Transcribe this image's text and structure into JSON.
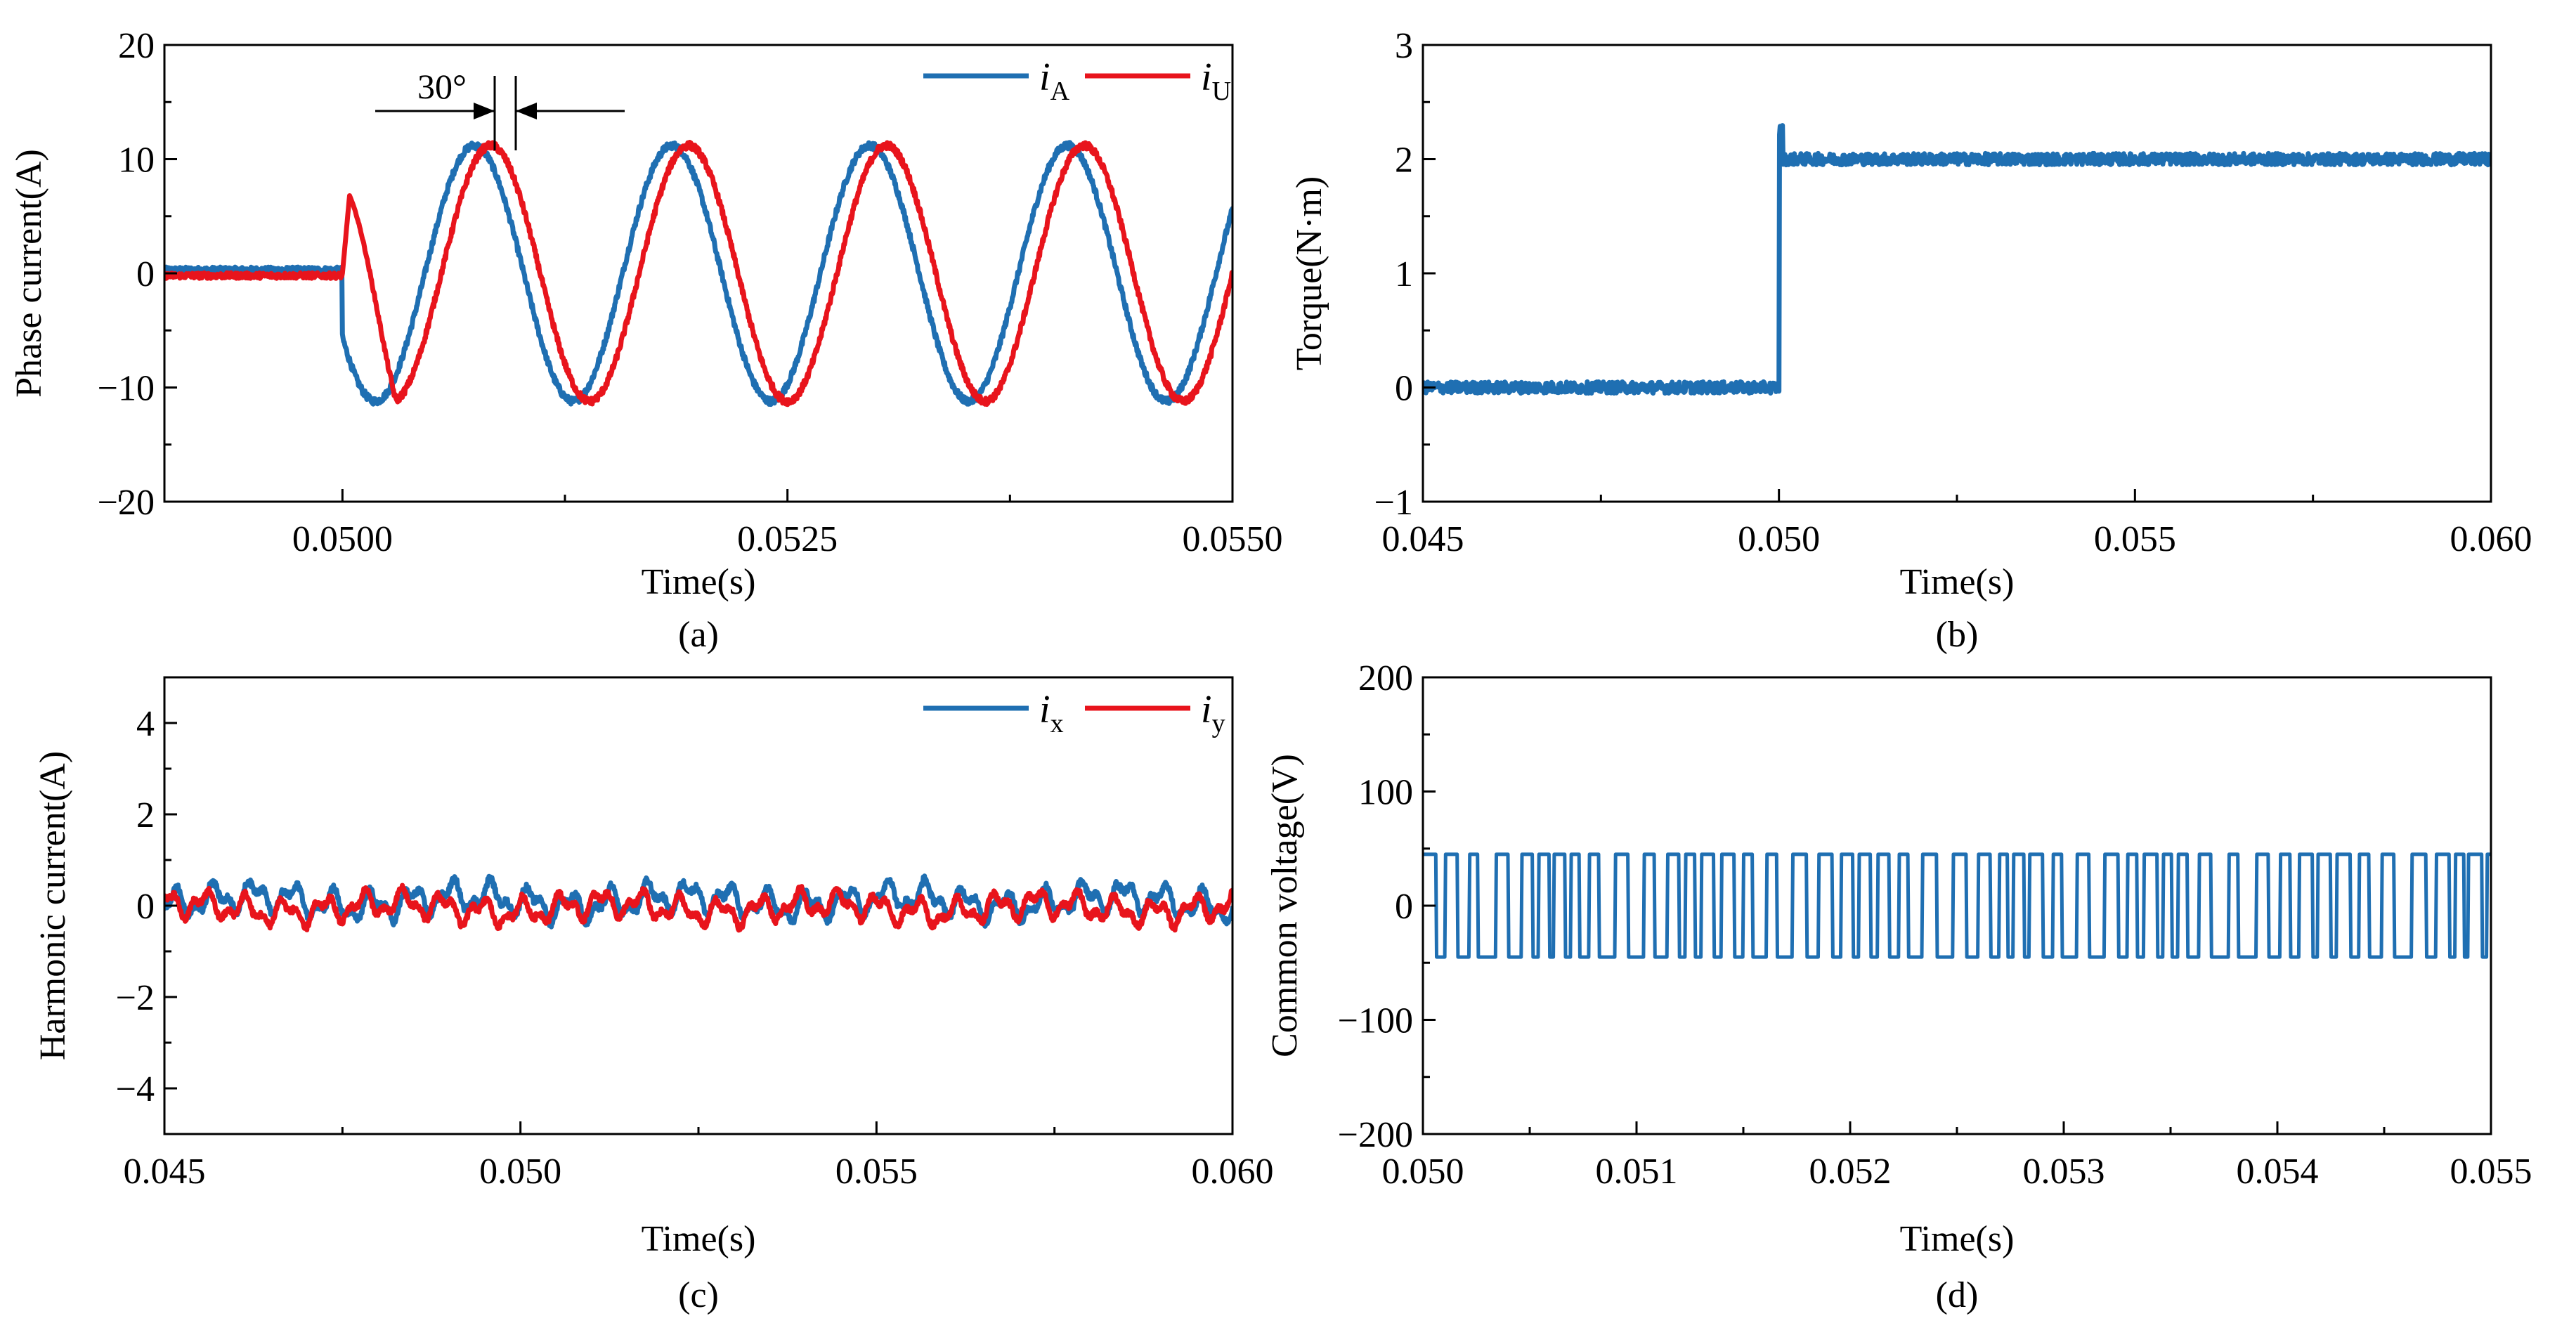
{
  "chart_data": [
    {
      "id": "a",
      "type": "line",
      "caption": "(a)",
      "xlabel": "Time(s)",
      "ylabel": "Phase current(A)",
      "xlim": [
        0.049,
        0.055
      ],
      "ylim": [
        -20,
        20
      ],
      "xticks": [
        0.05,
        0.0525,
        0.055
      ],
      "xtick_labels": [
        "0.0500",
        "0.0525",
        "0.0550"
      ],
      "xminor": [
        0.04875,
        0.05125,
        0.05375
      ],
      "yticks": [
        -20,
        -10,
        0,
        10,
        20
      ],
      "ytick_labels": [
        "−20",
        "−10",
        "0",
        "10",
        "20"
      ],
      "annotation": "30°",
      "legend": [
        {
          "name": "i",
          "sub": "A",
          "color": "#1f6fb2"
        },
        {
          "name": "i",
          "sub": "U",
          "color": "#e8141c"
        }
      ],
      "series": [
        {
          "name": "iA",
          "color": "#1f6fb2",
          "kind": "sine",
          "start": 0.05,
          "amplitude": 11.2,
          "frequency": 900,
          "phase_deg": 30,
          "pre_value": 0.3
        },
        {
          "name": "iU",
          "color": "#e8141c",
          "kind": "sine",
          "start": 0.05,
          "amplitude": 11.2,
          "frequency": 900,
          "phase_deg": 0,
          "pre_value": -0.2,
          "spike": 6.8
        }
      ]
    },
    {
      "id": "b",
      "type": "line",
      "caption": "(b)",
      "xlabel": "Time(s)",
      "ylabel": "Torque(N·m)",
      "xlim": [
        0.045,
        0.06
      ],
      "ylim": [
        -1,
        3
      ],
      "xticks": [
        0.045,
        0.05,
        0.055,
        0.06
      ],
      "xtick_labels": [
        "0.045",
        "0.050",
        "0.055",
        "0.060"
      ],
      "xminor": [
        0.0475,
        0.0525,
        0.0575
      ],
      "yticks": [
        -1,
        0,
        1,
        2,
        3
      ],
      "ytick_labels": [
        "−1",
        "0",
        "1",
        "2",
        "3"
      ],
      "series": [
        {
          "name": "Torque",
          "color": "#1f6fb2",
          "kind": "step",
          "step_time": 0.05,
          "before": 0.0,
          "after": 2.0,
          "overshoot": 2.25,
          "noise": 0.05
        }
      ]
    },
    {
      "id": "c",
      "type": "line",
      "caption": "(c)",
      "xlabel": "Time(s)",
      "ylabel": "Harmonic current(A)",
      "xlim": [
        0.045,
        0.06
      ],
      "ylim": [
        -5,
        5
      ],
      "xticks": [
        0.045,
        0.05,
        0.055,
        0.06
      ],
      "xtick_labels": [
        "0.045",
        "0.050",
        "0.055",
        "0.060"
      ],
      "xminor": [
        0.0475,
        0.0525,
        0.0575
      ],
      "yticks": [
        -4,
        -2,
        0,
        2,
        4
      ],
      "ytick_labels": [
        "−4",
        "−2",
        "0",
        "2",
        "4"
      ],
      "legend": [
        {
          "name": "i",
          "sub": "x",
          "color": "#1f6fb2"
        },
        {
          "name": "i",
          "sub": "y",
          "color": "#e8141c"
        }
      ],
      "series": [
        {
          "name": "ix",
          "color": "#1f6fb2",
          "kind": "ripple",
          "offset": 0.1,
          "amplitude": 0.25
        },
        {
          "name": "iy",
          "color": "#e8141c",
          "kind": "ripple",
          "offset": -0.05,
          "amplitude": 0.22
        }
      ]
    },
    {
      "id": "d",
      "type": "line",
      "caption": "(d)",
      "xlabel": "Time(s)",
      "ylabel": "Common voltage(V)",
      "xlim": [
        0.05,
        0.055
      ],
      "ylim": [
        -200,
        200
      ],
      "xticks": [
        0.05,
        0.051,
        0.052,
        0.053,
        0.054,
        0.055
      ],
      "xtick_labels": [
        "0.050",
        "0.051",
        "0.052",
        "0.053",
        "0.054",
        "0.055"
      ],
      "xminor": [
        0.0505,
        0.0515,
        0.0525,
        0.0535,
        0.0545
      ],
      "yticks": [
        -200,
        -100,
        0,
        100,
        200
      ],
      "ytick_labels": [
        "−200",
        "−100",
        "0",
        "100",
        "200"
      ],
      "series": [
        {
          "name": "Common voltage",
          "color": "#1f6fb2",
          "kind": "square",
          "high": 45,
          "low": -45
        }
      ]
    }
  ]
}
